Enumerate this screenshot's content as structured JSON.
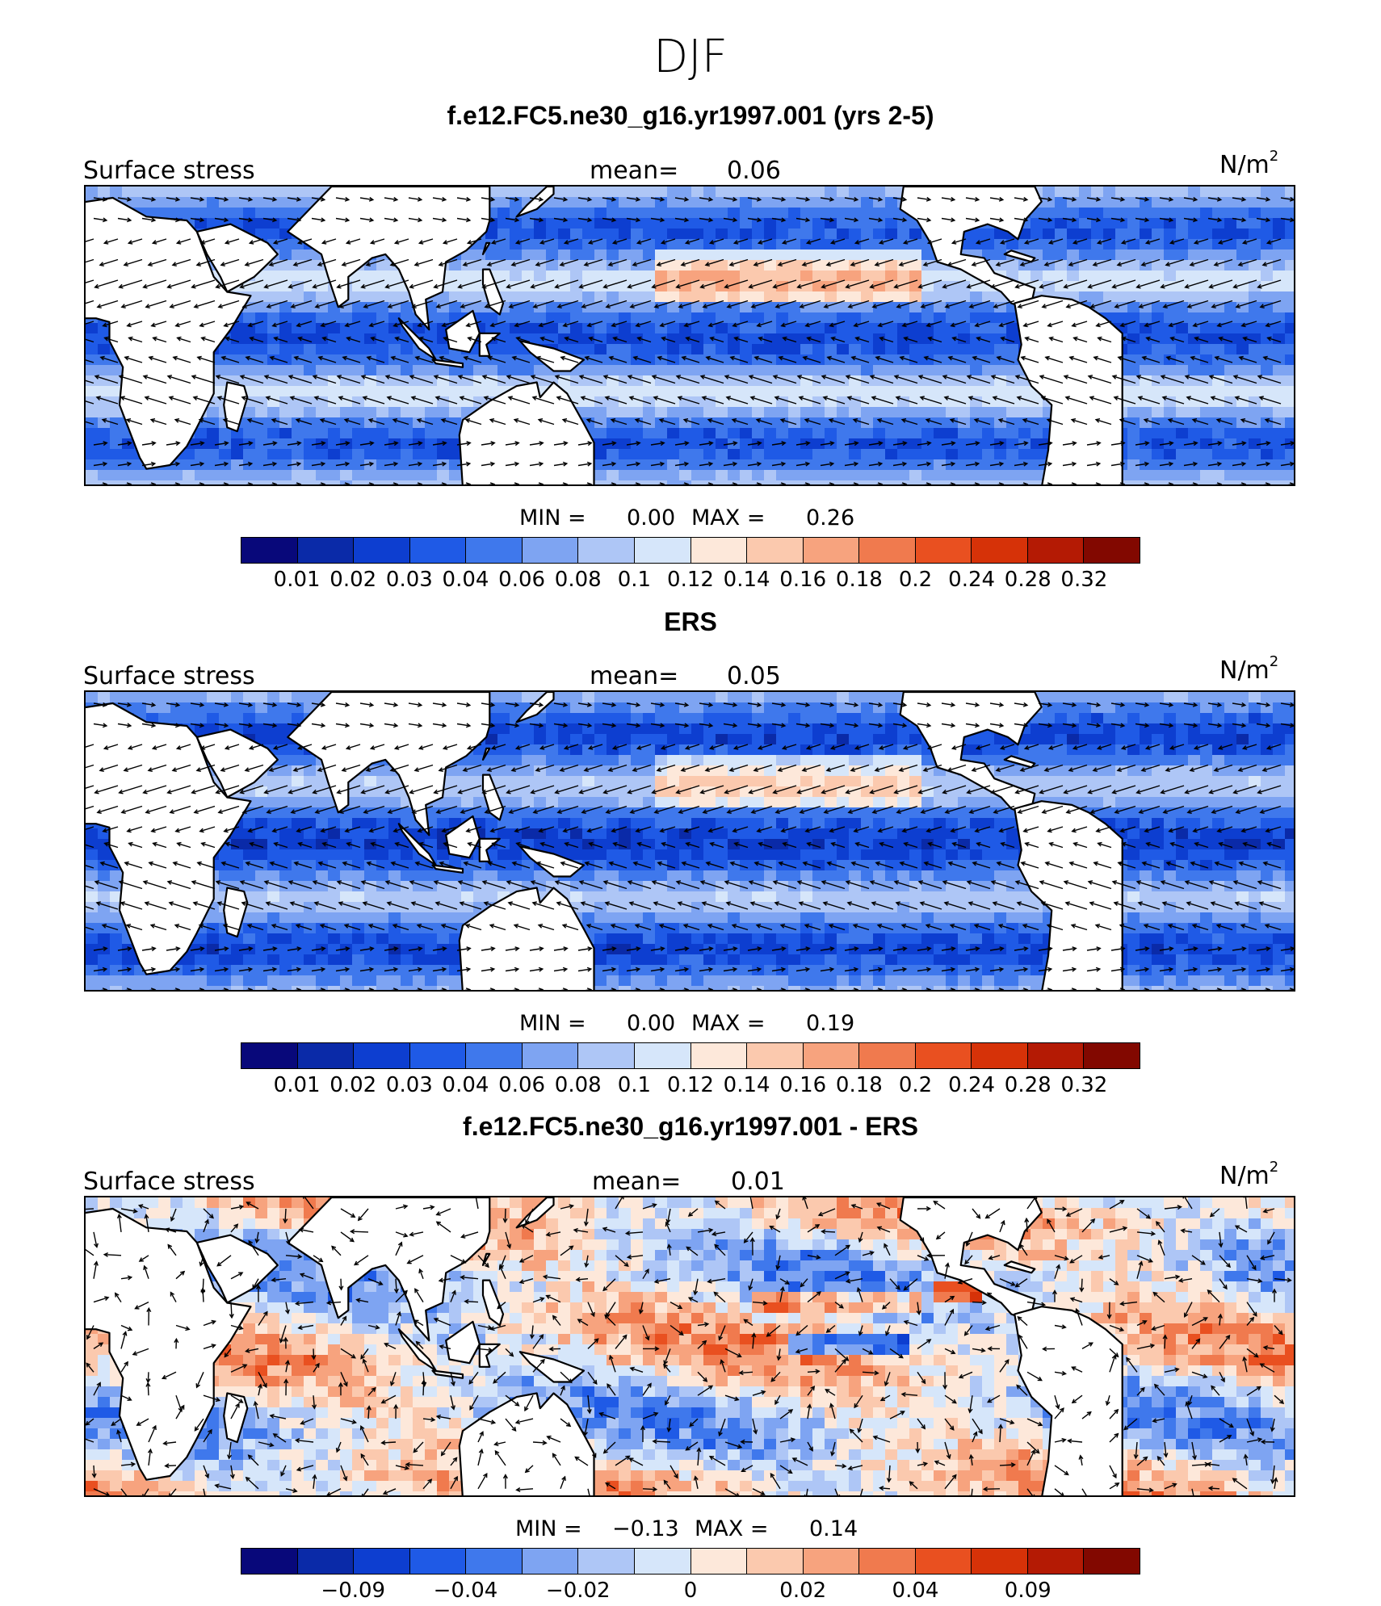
{
  "season": "DJF",
  "colors": [
    "#08087a",
    "#0a2aa8",
    "#0d3ed0",
    "#1f5ae6",
    "#3f78ec",
    "#7ea4f2",
    "#aec6f6",
    "#d6e6fa",
    "#fde8da",
    "#fbc9ae",
    "#f7a37e",
    "#f07a4e",
    "#e95020",
    "#d63208",
    "#b41a04",
    "#820800"
  ],
  "panels": [
    {
      "title": "f.e12.FC5.ne30_g16.yr1997.001 (yrs 2-5)",
      "variable_label": "Surface stress",
      "mean_label": "mean=",
      "mean_value": "0.06",
      "units": "N/m",
      "units_exp": "2",
      "min_label": "MIN =",
      "min_value": "0.00",
      "max_label": "MAX =",
      "max_value": "0.26",
      "colorbar_ticks": [
        "0.01",
        "0.02",
        "0.03",
        "0.04",
        "0.06",
        "0.08",
        "0.1",
        "0.12",
        "0.14",
        "0.16",
        "0.18",
        "0.2",
        "0.24",
        "0.28",
        "0.32"
      ],
      "field": "model"
    },
    {
      "title": "ERS",
      "variable_label": "Surface stress",
      "mean_label": "mean=",
      "mean_value": "0.05",
      "units": "N/m",
      "units_exp": "2",
      "min_label": "MIN =",
      "min_value": "0.00",
      "max_label": "MAX =",
      "max_value": "0.19",
      "colorbar_ticks": [
        "0.01",
        "0.02",
        "0.03",
        "0.04",
        "0.06",
        "0.08",
        "0.1",
        "0.12",
        "0.14",
        "0.16",
        "0.18",
        "0.2",
        "0.24",
        "0.28",
        "0.32"
      ],
      "field": "obs"
    },
    {
      "title": "f.e12.FC5.ne30_g16.yr1997.001 - ERS",
      "variable_label": "Surface stress",
      "mean_label": "mean=",
      "mean_value": "0.01",
      "units": "N/m",
      "units_exp": "2",
      "min_label": "MIN =",
      "min_value": "−0.13",
      "max_label": "MAX =",
      "max_value": "0.14",
      "colorbar_ticks": [
        "−0.09",
        "−0.04",
        "−0.02",
        "0",
        "0.02",
        "0.04",
        "0.09"
      ],
      "colorbar_tick_segments": [
        2,
        4,
        6,
        8,
        10,
        12,
        14
      ],
      "field": "diff"
    }
  ]
}
